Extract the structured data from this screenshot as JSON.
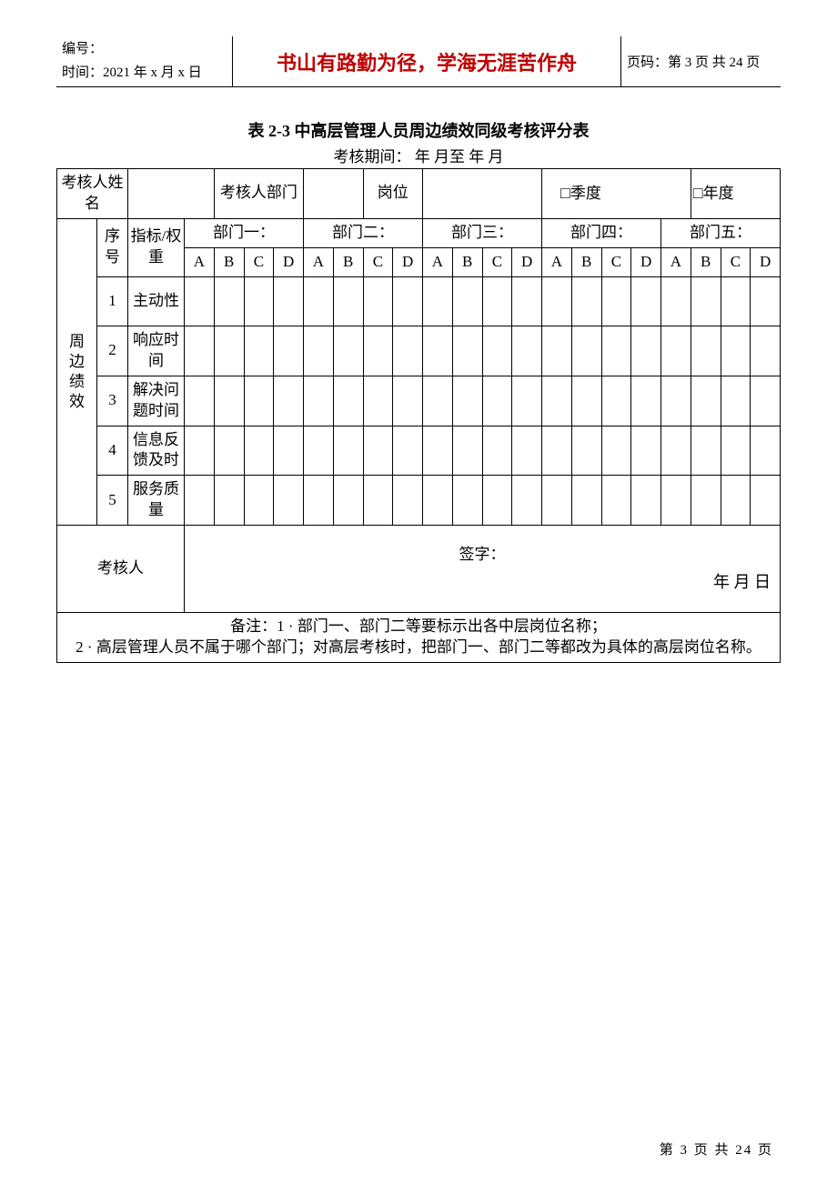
{
  "header": {
    "bianhao_label": "编号：",
    "shijian_label": "时间：",
    "shijian_value": "2021 年 x 月 x 日",
    "motto": "书山有路勤为径，学海无涯苦作舟",
    "page_label": "页码：第 3 页 共 24 页"
  },
  "title": "表 2-3  中高层管理人员周边绩效同级考核评分表",
  "subtitle": "考核期间：       年     月至       年     月",
  "row1": {
    "c1": "考核人姓名",
    "c2": "",
    "c3": "考核人部门",
    "c4": "",
    "c5": "岗位",
    "c6": "",
    "c7_html": "<span class='big-checkbox'>□</span>季度",
    "c8_html": "<span class='big-checkbox'>□</span>年度"
  },
  "headers2": {
    "side": "周边绩效",
    "seq": "序号",
    "indicator": "指标/权重",
    "depts": [
      "部门一：",
      "部门二：",
      "部门三：",
      "部门四：",
      "部门五："
    ],
    "abcd": [
      "A",
      "B",
      "C",
      "D"
    ]
  },
  "rows": [
    {
      "n": "1",
      "label": "主动性"
    },
    {
      "n": "2",
      "label": "响应时间"
    },
    {
      "n": "3",
      "label": "解决问题时间"
    },
    {
      "n": "4",
      "label": "信息反馈及时"
    },
    {
      "n": "5",
      "label": "服务质量"
    }
  ],
  "signer": {
    "left": "考核人",
    "sign_label": "签字：",
    "date_line": "年       月       日"
  },
  "notes_lines": [
    "备注：1 · 部门一、部门二等要标示出各中层岗位名称；",
    "2 · 高层管理人员不属于哪个部门；对高层考核时，把部门一、部门二等都改为具体的高层岗位名称。"
  ],
  "footer": "第  3  页  共  24  页"
}
